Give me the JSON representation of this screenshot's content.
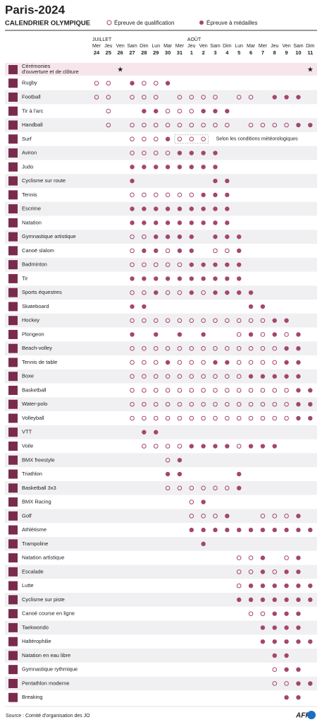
{
  "header": {
    "title": "Paris-2024",
    "subtitle": "CALENDRIER OLYMPIQUE"
  },
  "legend": {
    "qualification": "Épreuve de qualification",
    "medal": "Épreuve à médailles"
  },
  "color": "#a4466b",
  "months": [
    {
      "label": "JUILLET",
      "day": 24
    },
    {
      "label": "AOÛT",
      "day": 1
    }
  ],
  "days": [
    {
      "weekday": "Mer",
      "day": 24
    },
    {
      "weekday": "Jeu",
      "day": 25
    },
    {
      "weekday": "Ven",
      "day": 26
    },
    {
      "weekday": "Sam",
      "day": 27
    },
    {
      "weekday": "Dim",
      "day": 28
    },
    {
      "weekday": "Lun",
      "day": 29
    },
    {
      "weekday": "Mar",
      "day": 30
    },
    {
      "weekday": "Mer",
      "day": 31
    },
    {
      "weekday": "Jeu",
      "day": 1
    },
    {
      "weekday": "Ven",
      "day": 2
    },
    {
      "weekday": "Sam",
      "day": 3
    },
    {
      "weekday": "Dim",
      "day": 4
    },
    {
      "weekday": "Lun",
      "day": 5
    },
    {
      "weekday": "Mar",
      "day": 6
    },
    {
      "weekday": "Mer",
      "day": 7
    },
    {
      "weekday": "Jeu",
      "day": 8
    },
    {
      "weekday": "Ven",
      "day": 9
    },
    {
      "weekday": "Sam",
      "day": 10
    },
    {
      "weekday": "Dim",
      "day": 11
    }
  ],
  "ceremonies": {
    "name": "Cérémonies d'ouverture et de clôture",
    "days": [
      26,
      11
    ]
  },
  "sports": [
    {
      "name": "Rugby",
      "qualification": [
        24,
        25,
        28,
        29
      ],
      "medal": [
        27,
        30
      ]
    },
    {
      "name": "Football",
      "qualification": [
        24,
        25,
        27,
        28,
        29,
        31,
        1,
        2,
        3,
        5,
        6
      ],
      "medal": [
        8,
        9,
        10
      ]
    },
    {
      "name": "Tir à l'arc",
      "qualification": [
        25,
        30,
        31,
        1
      ],
      "medal": [
        28,
        29,
        2,
        3,
        4
      ]
    },
    {
      "name": "Handball",
      "qualification": [
        25,
        27,
        28,
        29,
        30,
        31,
        1,
        2,
        3,
        4,
        6,
        7,
        8,
        9
      ],
      "medal": [
        10,
        11
      ]
    },
    {
      "name": "Surf",
      "qualification": [
        27,
        28,
        29,
        31,
        1,
        2
      ],
      "medal": [
        30
      ],
      "note": {
        "text": "Selon les conditions météorologiques",
        "days": [
          31,
          1,
          2
        ]
      }
    },
    {
      "name": "Aviron",
      "qualification": [
        27,
        28,
        29,
        30
      ],
      "medal": [
        31,
        1,
        2,
        3
      ]
    },
    {
      "name": "Judo",
      "qualification": [],
      "medal": [
        27,
        28,
        29,
        30,
        31,
        1,
        2,
        3
      ]
    },
    {
      "name": "Cyclisme sur route",
      "qualification": [],
      "medal": [
        27,
        3,
        4
      ]
    },
    {
      "name": "Tennis",
      "qualification": [
        27,
        28,
        29,
        30,
        31,
        1
      ],
      "medal": [
        2,
        3,
        4
      ]
    },
    {
      "name": "Escrime",
      "qualification": [],
      "medal": [
        27,
        28,
        29,
        30,
        31,
        1,
        2,
        3,
        4
      ]
    },
    {
      "name": "Natation",
      "qualification": [],
      "medal": [
        27,
        28,
        29,
        30,
        31,
        1,
        2,
        3,
        4
      ]
    },
    {
      "name": "Gymnastique artistique",
      "qualification": [
        27,
        28
      ],
      "medal": [
        29,
        30,
        31,
        1,
        3,
        4,
        5
      ]
    },
    {
      "name": "Canoë slalom",
      "qualification": [
        27,
        30,
        3,
        4
      ],
      "medal": [
        28,
        29,
        31,
        1,
        5
      ]
    },
    {
      "name": "Badminton",
      "qualification": [
        27,
        28,
        29,
        30,
        31
      ],
      "medal": [
        1,
        2,
        3,
        4,
        5
      ]
    },
    {
      "name": "Tir",
      "qualification": [],
      "medal": [
        27,
        28,
        29,
        30,
        31,
        1,
        2,
        3,
        4,
        5
      ]
    },
    {
      "name": "Sports équestres",
      "qualification": [
        27,
        28,
        30,
        31,
        2
      ],
      "medal": [
        29,
        1,
        3,
        4,
        5,
        6
      ]
    },
    {
      "name": "Skateboard",
      "qualification": [],
      "medal": [
        27,
        28,
        6,
        7
      ]
    },
    {
      "name": "Hockey",
      "qualification": [
        27,
        28,
        29,
        30,
        31,
        1,
        2,
        3,
        4,
        5,
        6,
        7
      ],
      "medal": [
        8,
        9
      ]
    },
    {
      "name": "Plongeon",
      "qualification": [
        5,
        7,
        9
      ],
      "medal": [
        27,
        29,
        31,
        2,
        6,
        8,
        10
      ]
    },
    {
      "name": "Beach-volley",
      "qualification": [
        27,
        28,
        29,
        30,
        31,
        1,
        2,
        3,
        4,
        5,
        6,
        7,
        8
      ],
      "medal": [
        9,
        10
      ]
    },
    {
      "name": "Tennis de table",
      "qualification": [
        27,
        28,
        29,
        31,
        1,
        2,
        5,
        6,
        7,
        8
      ],
      "medal": [
        30,
        3,
        4,
        9,
        10
      ]
    },
    {
      "name": "Boxe",
      "qualification": [
        27,
        28,
        29,
        30,
        31,
        1,
        2,
        3,
        4,
        5
      ],
      "medal": [
        6,
        7,
        8,
        9,
        10
      ]
    },
    {
      "name": "Basketball",
      "qualification": [
        27,
        28,
        29,
        30,
        31,
        1,
        2,
        3,
        4,
        5,
        6,
        7,
        8,
        9
      ],
      "medal": [
        10,
        11
      ]
    },
    {
      "name": "Water-polo",
      "qualification": [
        27,
        28,
        29,
        30,
        31,
        1,
        2,
        3,
        4,
        5,
        6,
        7,
        8,
        9
      ],
      "medal": [
        10,
        11
      ]
    },
    {
      "name": "Volleyball",
      "qualification": [
        27,
        28,
        29,
        30,
        31,
        1,
        2,
        3,
        4,
        5,
        6,
        7,
        8,
        9
      ],
      "medal": [
        10,
        11
      ]
    },
    {
      "name": "VTT",
      "qualification": [],
      "medal": [
        28,
        29
      ]
    },
    {
      "name": "Voile",
      "qualification": [
        28,
        29,
        30,
        31,
        5
      ],
      "medal": [
        1,
        2,
        3,
        4,
        6,
        7,
        8
      ]
    },
    {
      "name": "BMX freestyle",
      "qualification": [
        30
      ],
      "medal": [
        31
      ]
    },
    {
      "name": "Triathlon",
      "qualification": [],
      "medal": [
        30,
        31,
        5
      ]
    },
    {
      "name": "Basketball 3x3",
      "qualification": [
        30,
        31,
        1,
        2,
        3,
        4
      ],
      "medal": [
        5
      ]
    },
    {
      "name": "BMX Racing",
      "qualification": [
        1
      ],
      "medal": [
        2
      ]
    },
    {
      "name": "Golf",
      "qualification": [
        1,
        2,
        3,
        7,
        8,
        9
      ],
      "medal": [
        4,
        10
      ]
    },
    {
      "name": "Athlétisme",
      "qualification": [],
      "medal": [
        1,
        2,
        3,
        4,
        5,
        6,
        7,
        8,
        9,
        10,
        11
      ]
    },
    {
      "name": "Trampoline",
      "qualification": [],
      "medal": [
        2
      ]
    },
    {
      "name": "Natation artistique",
      "qualification": [
        5,
        6,
        9
      ],
      "medal": [
        7,
        10
      ]
    },
    {
      "name": "Escalade",
      "qualification": [
        5,
        6,
        8
      ],
      "medal": [
        7,
        9,
        10
      ]
    },
    {
      "name": "Lutte",
      "qualification": [
        5
      ],
      "medal": [
        6,
        7,
        8,
        9,
        10,
        11
      ]
    },
    {
      "name": "Cyclisme sur piste",
      "qualification": [],
      "medal": [
        5,
        6,
        7,
        8,
        9,
        10,
        11
      ]
    },
    {
      "name": "Canoë course en ligne",
      "qualification": [
        6,
        7
      ],
      "medal": [
        8,
        9,
        10
      ]
    },
    {
      "name": "Taekwondo",
      "qualification": [],
      "medal": [
        7,
        8,
        9,
        10
      ]
    },
    {
      "name": "Haltérophilie",
      "qualification": [],
      "medal": [
        7,
        8,
        9,
        10,
        11
      ]
    },
    {
      "name": "Natation en eau libre",
      "qualification": [],
      "medal": [
        8,
        9
      ]
    },
    {
      "name": "Gymnastique rythmique",
      "qualification": [
        8
      ],
      "medal": [
        9,
        10
      ]
    },
    {
      "name": "Pentathlon moderne",
      "qualification": [
        8,
        9
      ],
      "medal": [
        10,
        11
      ]
    },
    {
      "name": "Breaking",
      "qualification": [],
      "medal": [
        9,
        10
      ]
    }
  ],
  "source": "Source : Comité d'organisation des JO",
  "logo": "AFP"
}
